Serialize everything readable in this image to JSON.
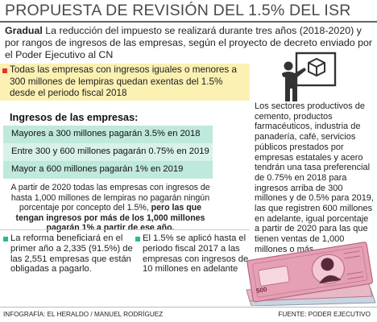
{
  "header": {
    "title": "PROPUESTA DE REVISIÓN DEL 1.5% DEL ISR"
  },
  "intro": {
    "lead": "Gradual",
    "text": " La reducción del impuesto se realizará durante tres años (2018-2020) y por rangos de ingresos de las empresas, según el proyecto de decreto enviado por el Poder Ejecutivo al CN"
  },
  "exempt_note": "Todas las empresas con ingresos iguales o menores a 300 millones de lempiras quedan exentas del 1.5% desde el periodo fiscal 2018",
  "income": {
    "heading": "Ingresos de las empresas:",
    "rows": [
      "Mayores a 300 millones pagarán 3.5% en 2018",
      "Entre 300 y 600 millones pagarán 0.75% en 2019",
      "Mayor a 600 millones pagarán 1% en 2019"
    ]
  },
  "paragraph": {
    "text": "A partir de 2020 todas las empresas con ingresos de hasta 1,000 millones de lempiras no pagarán ningún porcentaje por concepto del 1.5%,",
    "bold": " pero las que tengan ingresos por más de los 1,000 millones pagarán 1% a partir de ese año."
  },
  "notes": {
    "left": "La reforma beneficiará en el primer año a 2,335 (91.5%) de las 2,551 empresas que están obligadas a pagarlo.",
    "right": "El 1.5% se aplicó hasta el periodo fiscal 2017 a las empresas con ingresos de 10 millones en adelante"
  },
  "side": {
    "text": "Los sectores productivos de cemento, productos farmacéuticos, industria de panadería, café, servicios públicos prestados por empresas estatales y acero tendrán una tasa preferencial de 0.75% en 2018 para ingresos arriba de 300 millones y de 0.5% para 2019, las que registren 600 millones en adelante, igual porcentaje a partir de 2020 para las que tienen ventas de 1,000 millones o más."
  },
  "banknote": {
    "denomination": "500"
  },
  "footer": {
    "credit": "INFOGRAFÍA: EL HERALDO / MANUEL RODRÍGUEZ",
    "source": "FUENTE: PODER EJECUTIVO"
  },
  "colors": {
    "accent_teal": "#2cb6a0",
    "bar_teal": "#bfe9dc",
    "highlight_yellow": "#fbf1b3",
    "marker_red": "#e8352b",
    "banknote_pink": "#e5a0b3"
  }
}
